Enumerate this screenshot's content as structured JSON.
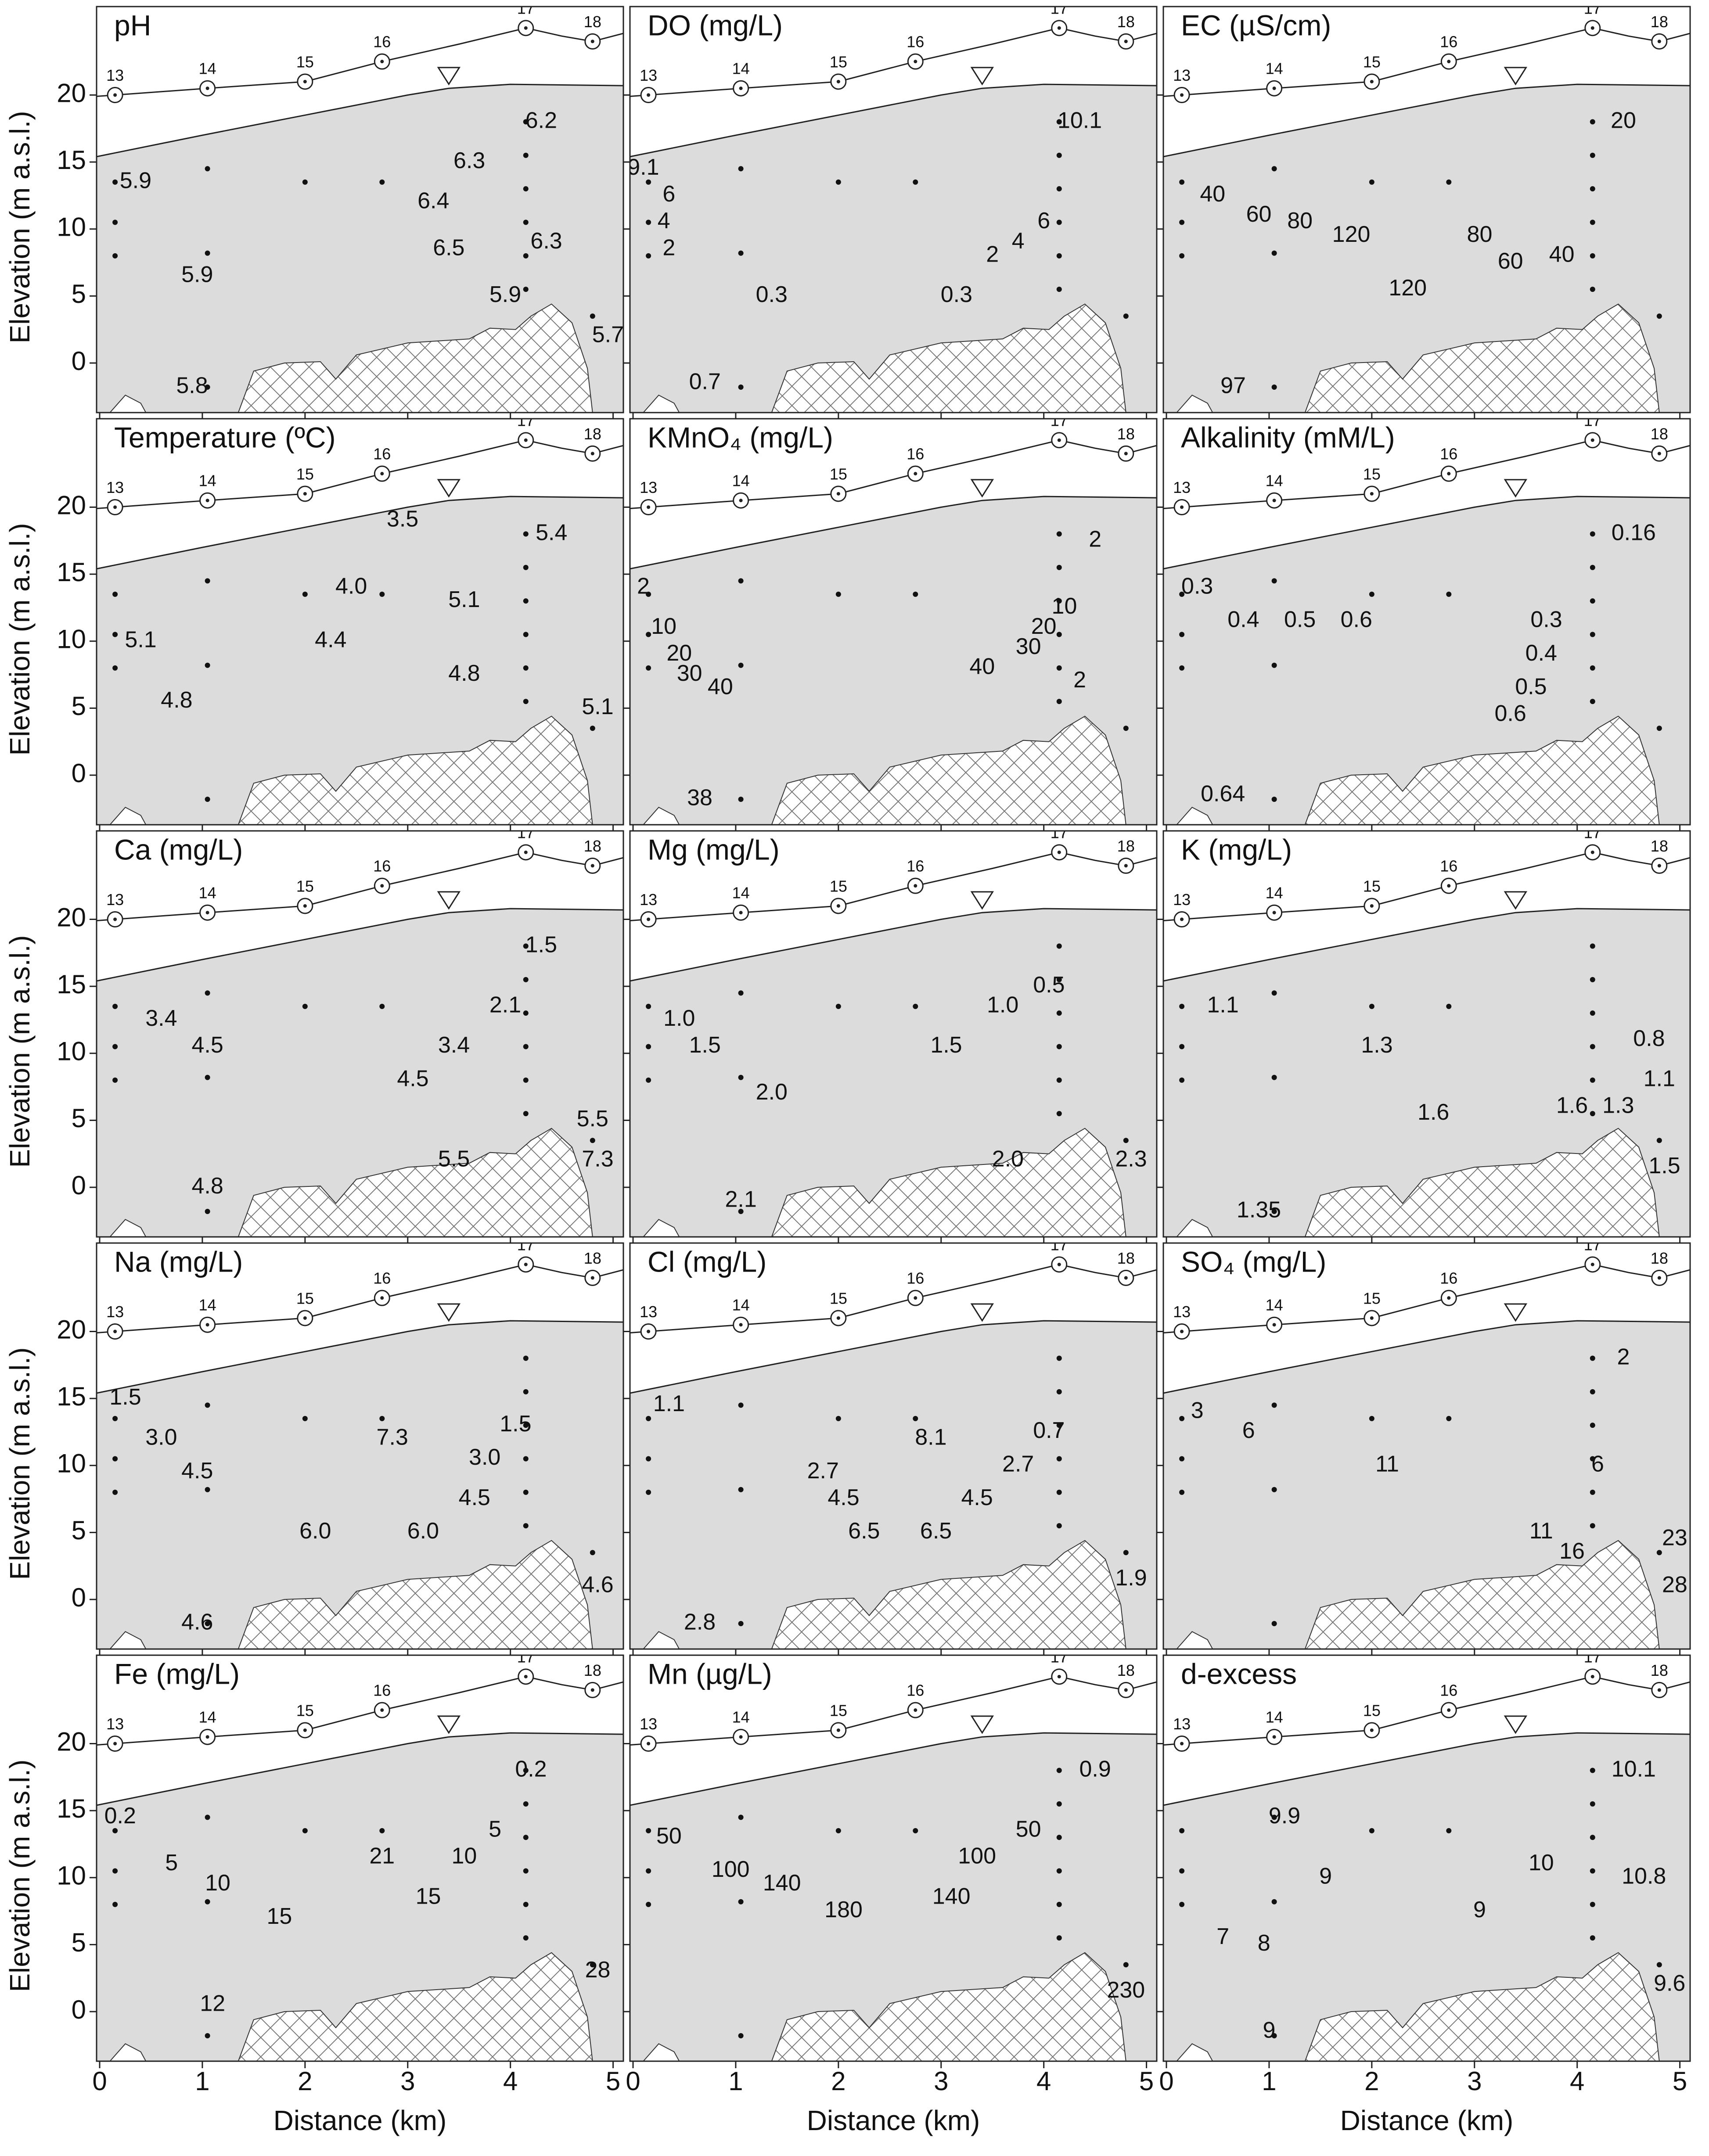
{
  "axes": {
    "xlabel": "Distance (km)",
    "ylabel": "Elevation (m a.s.l.)",
    "xlim": [
      -0.03,
      5.1
    ],
    "ylim": [
      -3.7,
      26.6
    ],
    "xticks": [
      0,
      1,
      2,
      3,
      4,
      5
    ],
    "yticks": [
      0,
      5,
      10,
      15,
      20
    ]
  },
  "wells": {
    "names": [
      "13",
      "14",
      "15",
      "16",
      "17",
      "18"
    ],
    "x": [
      0.15,
      1.05,
      2.0,
      2.75,
      4.15,
      4.8
    ]
  },
  "samples": {
    "x": [
      0.15,
      0.15,
      0.15,
      1.05,
      1.05,
      1.05,
      2.0,
      2.75,
      4.15,
      4.15,
      4.15,
      4.15,
      4.15,
      4.15,
      4.8
    ],
    "y": [
      13.5,
      10.5,
      8,
      14.5,
      8.2,
      -1.8,
      13.5,
      13.5,
      18,
      15.5,
      13,
      10.5,
      8,
      5.5,
      3.5
    ]
  },
  "chart_data": [
    {
      "type": "contour",
      "title": "pH",
      "x": [
        4.3,
        0.35,
        3.6,
        3.25,
        3.4,
        4.35,
        0.95,
        3.95,
        4.95,
        0.9
      ],
      "y": [
        18,
        13.5,
        15,
        12,
        8.5,
        9,
        6.5,
        5,
        2,
        -1.8
      ],
      "values": [
        6.2,
        5.9,
        6.3,
        6.4,
        6.5,
        6.3,
        5.9,
        5.9,
        5.7,
        5.8
      ]
    },
    {
      "type": "contour",
      "title": "DO (mg/L)",
      "x": [
        4.35,
        0.1,
        0.35,
        0.3,
        0.35,
        1.35,
        3.15,
        3.5,
        3.75,
        4.0,
        0.7
      ],
      "y": [
        18,
        14.5,
        12.5,
        10.5,
        8.5,
        5,
        5,
        8,
        9,
        10.5,
        -1.5
      ],
      "values": [
        10.1,
        9.1,
        6,
        4,
        2,
        0.3,
        0.3,
        2,
        4,
        6,
        0.7
      ]
    },
    {
      "type": "contour",
      "title": "EC (µS/cm)",
      "x": [
        4.45,
        0.45,
        0.9,
        1.3,
        1.8,
        2.35,
        3.05,
        3.35,
        3.85,
        0.65
      ],
      "y": [
        18,
        12.5,
        11,
        10.5,
        9.5,
        5.5,
        9.5,
        7.5,
        8,
        -1.8
      ],
      "values": [
        20,
        40,
        60,
        80,
        120,
        120,
        80,
        60,
        40,
        97
      ]
    },
    {
      "type": "contour",
      "title": "Temperature (ºC)",
      "x": [
        2.95,
        2.45,
        2.25,
        4.4,
        3.55,
        0.4,
        0.75,
        3.55,
        4.85
      ],
      "y": [
        19,
        14,
        10,
        18,
        13,
        10,
        5.5,
        7.5,
        5
      ],
      "values": [
        3.5,
        4,
        4.4,
        5.4,
        5.1,
        5.1,
        4.8,
        4.8,
        5.1
      ],
      "value_labels": [
        "3.5",
        "4.0",
        "4.4",
        "5.4",
        "5.1",
        "5.1",
        "4.8",
        "4.8",
        "5.1"
      ]
    },
    {
      "type": "contour",
      "title": "KMnO₄ (mg/L)",
      "x": [
        4.5,
        0.1,
        0.3,
        0.45,
        0.55,
        0.85,
        3.4,
        3.85,
        4.0,
        4.2,
        4.35,
        0.65
      ],
      "y": [
        17.5,
        14,
        11,
        9,
        7.5,
        6.5,
        8,
        9.5,
        11,
        12.5,
        7,
        -1.8
      ],
      "values": [
        2,
        2,
        10,
        20,
        30,
        40,
        40,
        30,
        20,
        10,
        2,
        38
      ]
    },
    {
      "type": "contour",
      "title": "Alkalinity (mM/L)",
      "x": [
        4.55,
        0.3,
        0.75,
        1.3,
        1.85,
        3.7,
        3.65,
        3.55,
        3.35,
        0.55
      ],
      "y": [
        18,
        14,
        11.5,
        11.5,
        11.5,
        11.5,
        9,
        6.5,
        4.5,
        -1.5
      ],
      "values": [
        0.16,
        0.3,
        0.4,
        0.5,
        0.6,
        0.3,
        0.4,
        0.5,
        0.6,
        0.64
      ]
    },
    {
      "type": "contour",
      "title": "Ca (mg/L)",
      "x": [
        4.3,
        0.6,
        1.05,
        3.05,
        3.45,
        3.95,
        4.8,
        3.45,
        4.85,
        1.05
      ],
      "y": [
        18,
        12.5,
        10.5,
        8,
        10.5,
        13.5,
        5,
        2,
        2,
        0
      ],
      "values": [
        1.5,
        3.4,
        4.5,
        4.5,
        3.4,
        2.1,
        5.5,
        5.5,
        7.3,
        4.8
      ]
    },
    {
      "type": "contour",
      "title": "Mg (mg/L)",
      "x": [
        4.05,
        0.45,
        0.7,
        1.35,
        3.05,
        3.6,
        3.65,
        1.05,
        4.85
      ],
      "y": [
        15,
        12.5,
        10.5,
        7,
        10.5,
        13.5,
        2,
        -1,
        2
      ],
      "values": [
        0.5,
        1,
        1.5,
        2,
        1.5,
        1,
        2,
        2.1,
        2.3
      ],
      "value_labels": [
        "0.5",
        "1.0",
        "1.5",
        "2.0",
        "1.5",
        "1.0",
        "2.0",
        "2.1",
        "2.3"
      ]
    },
    {
      "type": "contour",
      "title": "K (mg/L)",
      "x": [
        0.55,
        4.7,
        4.8,
        2.05,
        2.6,
        3.95,
        4.4,
        4.85,
        0.9
      ],
      "y": [
        13.5,
        11,
        8,
        10.5,
        5.5,
        6,
        6,
        1.5,
        -1.8
      ],
      "values": [
        1.1,
        0.8,
        1.1,
        1.3,
        1.6,
        1.6,
        1.3,
        1.5,
        1.35
      ]
    },
    {
      "type": "contour",
      "title": "Na (mg/L)",
      "x": [
        0.25,
        0.6,
        0.95,
        2.1,
        2.85,
        3.15,
        3.65,
        3.75,
        4.05,
        4.85,
        0.95
      ],
      "y": [
        15,
        12,
        9.5,
        5,
        12,
        5,
        7.5,
        10.5,
        13,
        1,
        -1.8
      ],
      "values": [
        1.5,
        3,
        4.5,
        6,
        7.3,
        6,
        4.5,
        3,
        1.5,
        4.6,
        4.6
      ],
      "value_labels": [
        "1.5",
        "3.0",
        "4.5",
        "6.0",
        "7.3",
        "6.0",
        "4.5",
        "3.0",
        "1.5",
        "4.6",
        "4.6"
      ]
    },
    {
      "type": "contour",
      "title": "Cl (mg/L)",
      "x": [
        0.35,
        1.85,
        2.05,
        2.25,
        2.9,
        2.95,
        3.35,
        3.75,
        4.05,
        4.85,
        0.65
      ],
      "y": [
        14.5,
        9.5,
        7.5,
        5,
        12,
        5,
        7.5,
        10,
        12.5,
        1.5,
        -1.8
      ],
      "values": [
        1.1,
        2.7,
        4.5,
        6.5,
        8.1,
        6.5,
        4.5,
        2.7,
        0.7,
        1.9,
        2.8
      ]
    },
    {
      "type": "contour",
      "title": "SO₄ (mg/L)",
      "x": [
        4.45,
        0.3,
        0.8,
        2.15,
        4.2,
        3.65,
        3.95,
        4.95,
        4.95
      ],
      "y": [
        18,
        14,
        12.5,
        10,
        10,
        5,
        3.5,
        4.5,
        1
      ],
      "values": [
        2,
        3,
        6,
        11,
        6,
        11,
        16,
        23,
        28
      ]
    },
    {
      "type": "contour",
      "title": "Fe (mg/L)",
      "x": [
        4.2,
        0.2,
        0.7,
        1.15,
        1.75,
        2.75,
        3.2,
        3.55,
        3.85,
        4.85,
        1.1
      ],
      "y": [
        18,
        14.5,
        11,
        9.5,
        7,
        11.5,
        8.5,
        11.5,
        13.5,
        3,
        0.5
      ],
      "values": [
        0.2,
        0.2,
        5,
        10,
        15,
        21,
        15,
        10,
        5,
        28,
        12
      ]
    },
    {
      "type": "contour",
      "title": "Mn (µg/L)",
      "x": [
        4.5,
        0.35,
        0.95,
        1.45,
        2.05,
        3.85,
        3.35,
        3.1,
        4.8
      ],
      "y": [
        18,
        13,
        10.5,
        9.5,
        7.5,
        13.5,
        11.5,
        8.5,
        1.5
      ],
      "values": [
        0.9,
        50,
        100,
        140,
        180,
        50,
        100,
        140,
        230
      ]
    },
    {
      "type": "contour",
      "title": "d-excess",
      "x": [
        4.55,
        1.15,
        1.55,
        3.65,
        4.65,
        3.05,
        0.55,
        0.95,
        4.9,
        1.0
      ],
      "y": [
        18,
        14.5,
        10,
        11,
        10,
        7.5,
        5.5,
        5,
        2,
        -1.5
      ],
      "values": [
        10.1,
        9.9,
        9,
        10,
        10.8,
        9,
        7,
        8,
        9.6,
        9
      ]
    }
  ]
}
